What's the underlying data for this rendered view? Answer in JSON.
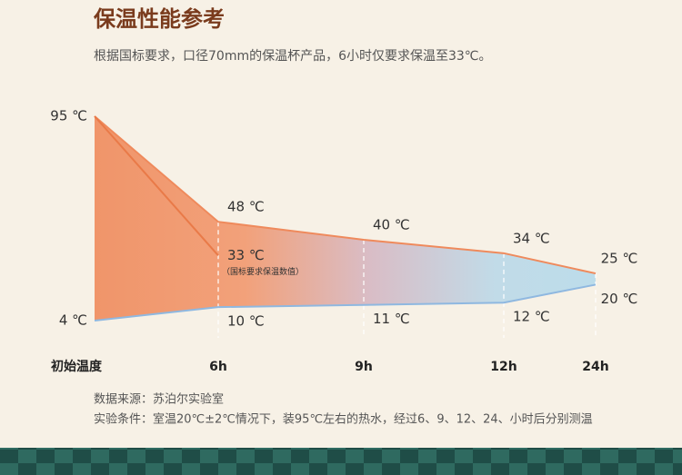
{
  "chart_data": {
    "type": "line",
    "title": "保温性能参考",
    "subtitle": "根据国标要求，口径70mm的保温杯产品，6小时仅要求保温至33℃。",
    "categories": [
      "初始温度",
      "6h",
      "9h",
      "12h",
      "24h"
    ],
    "series": [
      {
        "color": "#ef8a5c",
        "values": [
          95,
          48,
          40,
          34,
          25
        ],
        "value_labels": [
          "95 ℃",
          "48 ℃",
          "40 ℃",
          "34 ℃",
          "25 ℃"
        ]
      },
      {
        "color": "#e97a48",
        "values": [
          95,
          33,
          null,
          null,
          null
        ],
        "value_labels": [
          null,
          "33 ℃",
          null,
          null,
          null
        ],
        "annotation": "（国标要求保温数值）"
      },
      {
        "color": "#8fb8e0",
        "values": [
          4,
          10,
          11,
          12,
          20
        ],
        "value_labels": [
          "4 ℃",
          "10 ℃",
          "11 ℃",
          "12 ℃",
          "20 ℃"
        ]
      }
    ],
    "notes": [
      "数据来源：苏泊尔实验室",
      "实验条件：室温20℃±2℃情况下，装95℃左右的热水，经过6、9、12、24、小时后分别测温"
    ]
  }
}
